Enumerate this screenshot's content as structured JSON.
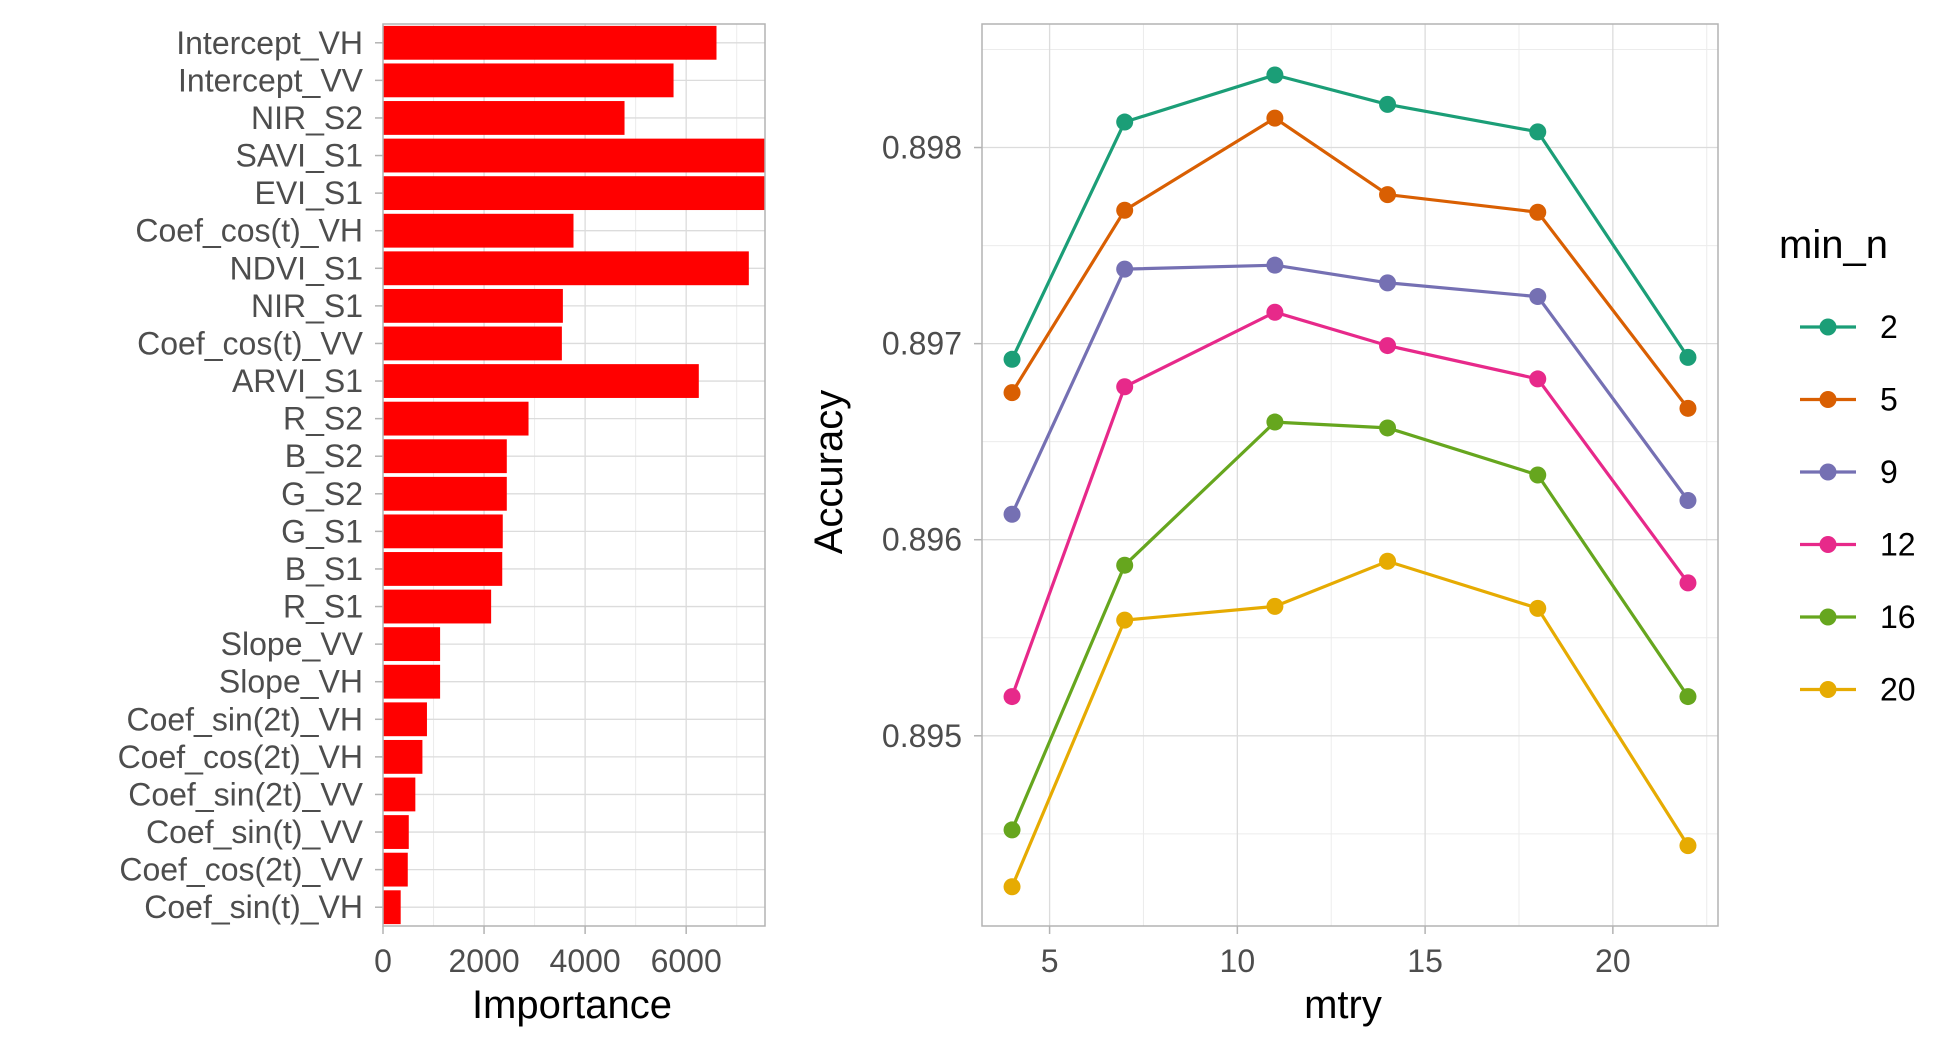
{
  "chart_data": [
    {
      "type": "bar",
      "orientation": "horizontal",
      "xlabel": "Importance",
      "ylabel": "",
      "xlim": [
        0,
        7560
      ],
      "xticks": [
        0,
        2000,
        4000,
        6000
      ],
      "x_tick_labels": [
        "0",
        "2000",
        "4000",
        "6000"
      ],
      "grid": true,
      "bar_color": "#ff0000",
      "categories": [
        "Intercept_VH",
        "Intercept_VV",
        "NIR_S2",
        "SAVI_S1",
        "EVI_S1",
        "Coef_cos(t)_VH",
        "NDVI_S1",
        "NIR_S1",
        "Coef_cos(t)_VV",
        "ARVI_S1",
        "R_S2",
        "B_S2",
        "G_S2",
        "G_S1",
        "B_S1",
        "R_S1",
        "Slope_VV",
        "Slope_VH",
        "Coef_sin(2t)_VH",
        "Coef_cos(2t)_VH",
        "Coef_sin(2t)_VV",
        "Coef_sin(t)_VV",
        "Coef_cos(2t)_VV",
        "Coef_sin(t)_VH"
      ],
      "values": [
        6600,
        5750,
        4780,
        7570,
        7570,
        3770,
        7240,
        3560,
        3540,
        6250,
        2880,
        2450,
        2450,
        2370,
        2360,
        2140,
        1130,
        1130,
        870,
        780,
        640,
        510,
        490,
        350
      ]
    },
    {
      "type": "line",
      "xlabel": "mtry",
      "ylabel": "Accuracy",
      "xlim": [
        3.2,
        22.8
      ],
      "ylim": [
        0.89403,
        0.89863
      ],
      "xticks": [
        5,
        10,
        15,
        20
      ],
      "yticks": [
        0.895,
        0.896,
        0.897,
        0.898
      ],
      "x_tick_labels": [
        "5",
        "10",
        "15",
        "20"
      ],
      "y_tick_labels": [
        "0.895",
        "0.896",
        "0.897",
        "0.898"
      ],
      "grid": true,
      "legend_title": "min_n",
      "legend_position": "right",
      "x": [
        4,
        7,
        11,
        14,
        18,
        22
      ],
      "series": [
        {
          "name": "2",
          "color": "#1b9e77",
          "values": [
            0.89692,
            0.89813,
            0.89837,
            0.89822,
            0.89808,
            0.89693
          ]
        },
        {
          "name": "5",
          "color": "#d95f02",
          "values": [
            0.89675,
            0.89768,
            0.89815,
            0.89776,
            0.89767,
            0.89667
          ]
        },
        {
          "name": "9",
          "color": "#7570b3",
          "values": [
            0.89613,
            0.89738,
            0.8974,
            0.89731,
            0.89724,
            0.8962
          ]
        },
        {
          "name": "12",
          "color": "#e7298a",
          "values": [
            0.8952,
            0.89678,
            0.89716,
            0.89699,
            0.89682,
            0.89578
          ]
        },
        {
          "name": "16",
          "color": "#66a61e",
          "values": [
            0.89452,
            0.89587,
            0.8966,
            0.89657,
            0.89633,
            0.8952
          ]
        },
        {
          "name": "20",
          "color": "#e6ab02",
          "values": [
            0.89423,
            0.89559,
            0.89566,
            0.89589,
            0.89565,
            0.89444
          ]
        }
      ]
    }
  ]
}
